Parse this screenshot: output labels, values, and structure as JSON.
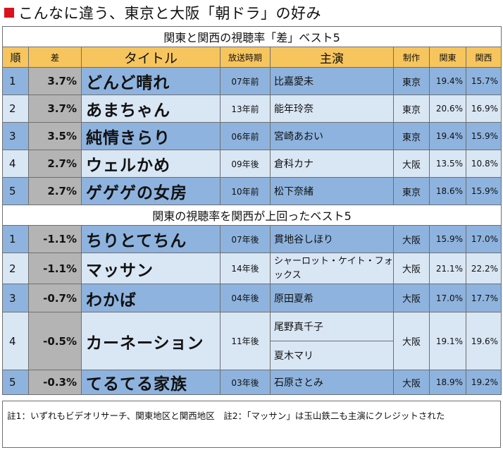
{
  "title": "こんなに違う、東京と大阪「朝ドラ」の好み",
  "colors": {
    "title_mark": "#d9131b",
    "header": "#f6c55e",
    "row_dark": "#8eb3de",
    "row_light": "#d9e6f4",
    "diff_cell": "#b4b4b4"
  },
  "section1_heading": "関東と関西の視聴率「差」ベスト5",
  "section2_heading": "関東の視聴率を関西が上回ったベスト5",
  "headers": {
    "rank": "順",
    "diff": "差",
    "title": "タイトル",
    "air": "放送時期",
    "cast": "主演",
    "production": "制作",
    "kanto": "関東",
    "kansai": "関西"
  },
  "section1_rows": [
    {
      "rank": "1",
      "diff": "3.7%",
      "title": "どんど晴れ",
      "air": "07年前",
      "cast": "比嘉愛未",
      "production": "東京",
      "kanto": "19.4%",
      "kansai": "15.7%"
    },
    {
      "rank": "2",
      "diff": "3.7%",
      "title": "あまちゃん",
      "air": "13年前",
      "cast": "能年玲奈",
      "production": "東京",
      "kanto": "20.6%",
      "kansai": "16.9%"
    },
    {
      "rank": "3",
      "diff": "3.5%",
      "title": "純情きらり",
      "air": "06年前",
      "cast": "宮崎あおい",
      "production": "東京",
      "kanto": "19.4%",
      "kansai": "15.9%"
    },
    {
      "rank": "4",
      "diff": "2.7%",
      "title": "ウェルかめ",
      "air": "09年後",
      "cast": "倉科カナ",
      "production": "大阪",
      "kanto": "13.5%",
      "kansai": "10.8%"
    },
    {
      "rank": "5",
      "diff": "2.7%",
      "title": "ゲゲゲの女房",
      "air": "10年前",
      "cast": "松下奈緒",
      "production": "東京",
      "kanto": "18.6%",
      "kansai": "15.9%"
    }
  ],
  "section2_rows": [
    {
      "rank": "1",
      "diff": "-1.1%",
      "title": "ちりとてちん",
      "air": "07年後",
      "cast": "貫地谷しほり",
      "production": "大阪",
      "kanto": "15.9%",
      "kansai": "17.0%"
    },
    {
      "rank": "2",
      "diff": "-1.1%",
      "title": "マッサン",
      "air": "14年後",
      "cast": "シャーロット・ケイト・フォックス",
      "production": "大阪",
      "kanto": "21.1%",
      "kansai": "22.2%"
    },
    {
      "rank": "3",
      "diff": "-0.7%",
      "title": "わかば",
      "air": "04年後",
      "cast": "原田夏希",
      "production": "大阪",
      "kanto": "17.0%",
      "kansai": "17.7%"
    },
    {
      "rank": "4",
      "diff": "-0.5%",
      "title": "カーネーション",
      "air": "11年後",
      "cast": "尾野真千子",
      "cast2": "夏木マリ",
      "production": "大阪",
      "kanto": "19.1%",
      "kansai": "19.6%"
    },
    {
      "rank": "5",
      "diff": "-0.3%",
      "title": "てるてる家族",
      "air": "03年後",
      "cast": "石原さとみ",
      "production": "大阪",
      "kanto": "18.9%",
      "kansai": "19.2%"
    }
  ],
  "notes": "註1：いずれもビデオリサーチ、関東地区と関西地区　註2：「マッサン」は玉山鉄二も主演にクレジットされた"
}
